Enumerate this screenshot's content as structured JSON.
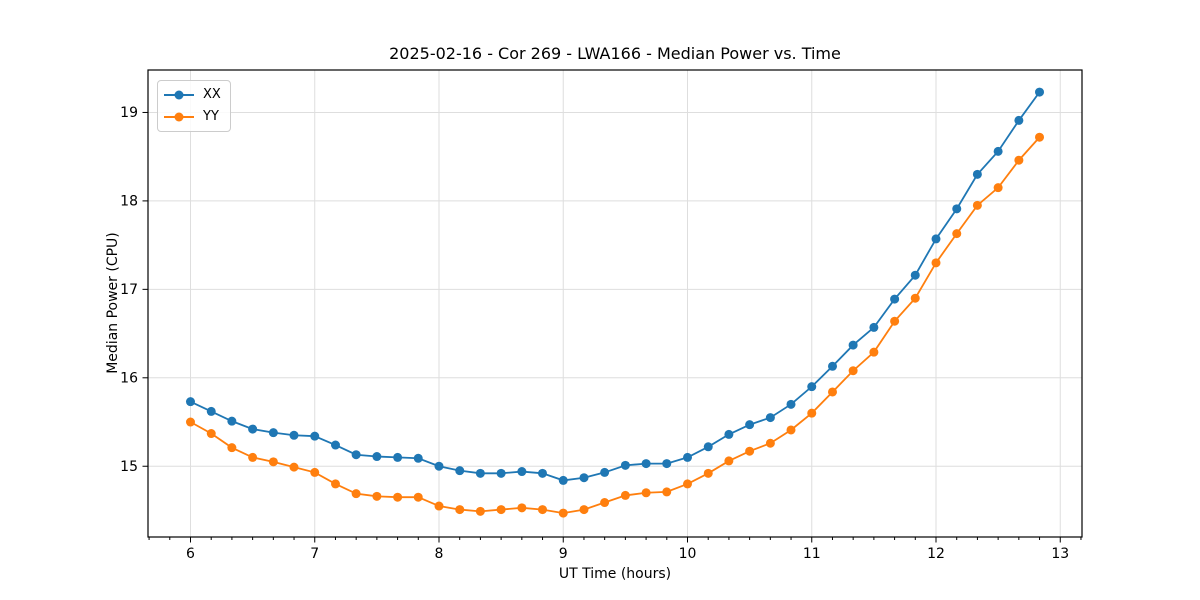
{
  "chart_data": {
    "type": "line",
    "title": "2025-02-16 - Cor 269 - LWA166 - Median Power vs. Time",
    "xlabel": "UT Time (hours)",
    "ylabel": "Median Power (CPU)",
    "xlim": [
      5.658,
      13.175
    ],
    "ylim": [
      14.2,
      19.48
    ],
    "x_ticks": [
      6,
      7,
      8,
      9,
      10,
      11,
      12,
      13
    ],
    "y_ticks": [
      15,
      16,
      17,
      18,
      19
    ],
    "x_minor_divisions": 6,
    "grid": true,
    "grid_color": "#dedede",
    "spine_color": "#000000",
    "legend_position": "upper left",
    "marker": "circle",
    "x": [
      6.0,
      6.167,
      6.333,
      6.5,
      6.667,
      6.833,
      7.0,
      7.167,
      7.333,
      7.5,
      7.667,
      7.833,
      8.0,
      8.167,
      8.333,
      8.5,
      8.667,
      8.833,
      9.0,
      9.167,
      9.333,
      9.5,
      9.667,
      9.833,
      10.0,
      10.167,
      10.333,
      10.5,
      10.667,
      10.833,
      11.0,
      11.167,
      11.333,
      11.5,
      11.667,
      11.833,
      12.0,
      12.167,
      12.333,
      12.5,
      12.667,
      12.833
    ],
    "series": [
      {
        "name": "XX",
        "color": "#1f77b4",
        "values": [
          15.73,
          15.62,
          15.51,
          15.42,
          15.38,
          15.35,
          15.34,
          15.24,
          15.13,
          15.11,
          15.1,
          15.09,
          15.0,
          14.95,
          14.92,
          14.92,
          14.94,
          14.92,
          14.84,
          14.87,
          14.93,
          15.01,
          15.03,
          15.03,
          15.1,
          15.22,
          15.36,
          15.47,
          15.55,
          15.7,
          15.9,
          16.13,
          16.37,
          16.57,
          16.89,
          17.16,
          17.57,
          17.91,
          18.3,
          18.56,
          18.91,
          19.23
        ]
      },
      {
        "name": "YY",
        "color": "#ff7f0e",
        "values": [
          15.5,
          15.37,
          15.21,
          15.1,
          15.05,
          14.99,
          14.93,
          14.8,
          14.69,
          14.66,
          14.65,
          14.65,
          14.55,
          14.51,
          14.49,
          14.51,
          14.53,
          14.51,
          14.47,
          14.51,
          14.59,
          14.67,
          14.7,
          14.71,
          14.8,
          14.92,
          15.06,
          15.17,
          15.26,
          15.41,
          15.6,
          15.84,
          16.08,
          16.29,
          16.64,
          16.9,
          17.3,
          17.63,
          17.95,
          18.15,
          18.46,
          18.72
        ]
      }
    ]
  }
}
